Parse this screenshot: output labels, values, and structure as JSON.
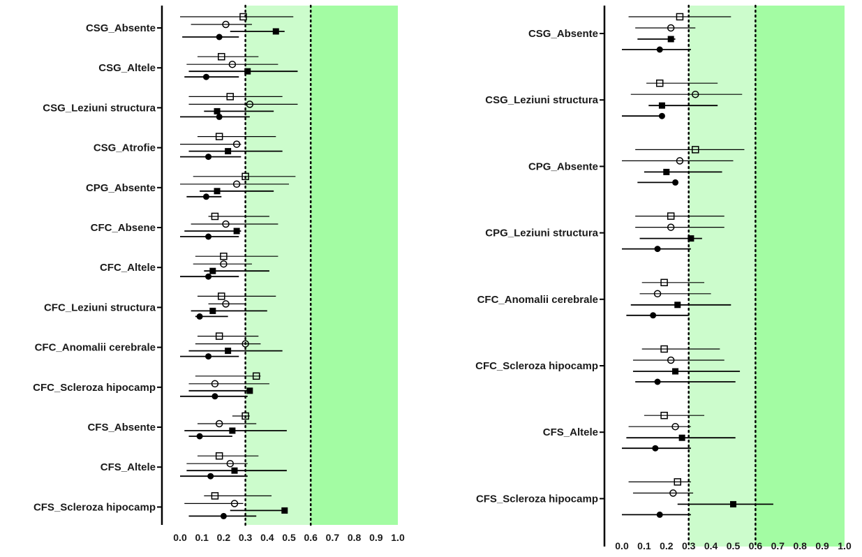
{
  "chart_data": [
    {
      "type": "forest",
      "xlim": [
        0,
        1
      ],
      "xticks": [
        0.0,
        0.1,
        0.2,
        0.3,
        0.4,
        0.5,
        0.6,
        0.7,
        0.8,
        0.9,
        1.0
      ],
      "tick_labels": [
        "0.0",
        "0.1",
        "0.2",
        "0.3",
        "0.4",
        "0.5",
        "0.6",
        "0.7",
        "0.8",
        "0.9",
        "1.0"
      ],
      "reference_lines": [
        0.3,
        0.6
      ],
      "shaded_bands": [
        {
          "from": 0.3,
          "to": 0.6,
          "color": "#ccfccc"
        },
        {
          "from": 0.6,
          "to": 1.0,
          "color": "#a3fca3"
        }
      ],
      "categories": [
        "CSG_Absente",
        "CSG_Altele",
        "CSG_Leziuni structura",
        "CSG_Atrofie",
        "CPG_Absente",
        "CFC_Absene",
        "CFC_Altele",
        "CFC_Leziuni structura",
        "CFC_Anomalii cerebrale",
        "CFC_Scleroza hipocamp",
        "CFS_Absente",
        "CFS_Altele",
        "CFS_Scleroza hipocamp"
      ],
      "series": [
        {
          "marker": "open-square",
          "points": [
            {
              "est": 0.29,
              "lo": 0.0,
              "hi": 0.52
            },
            {
              "est": 0.19,
              "lo": 0.08,
              "hi": 0.36
            },
            {
              "est": 0.23,
              "lo": 0.04,
              "hi": 0.47
            },
            {
              "est": 0.18,
              "lo": 0.08,
              "hi": 0.44
            },
            {
              "est": 0.3,
              "lo": 0.06,
              "hi": 0.53
            },
            {
              "est": 0.16,
              "lo": 0.13,
              "hi": 0.41
            },
            {
              "est": 0.2,
              "lo": 0.07,
              "hi": 0.45
            },
            {
              "est": 0.19,
              "lo": 0.08,
              "hi": 0.44
            },
            {
              "est": 0.18,
              "lo": 0.08,
              "hi": 0.36
            },
            {
              "est": 0.35,
              "lo": 0.07,
              "hi": 0.37
            },
            {
              "est": 0.3,
              "lo": 0.24,
              "hi": 0.32
            },
            {
              "est": 0.18,
              "lo": 0.08,
              "hi": 0.36
            },
            {
              "est": 0.16,
              "lo": 0.11,
              "hi": 0.42
            }
          ]
        },
        {
          "marker": "open-circle",
          "points": [
            {
              "est": 0.21,
              "lo": 0.05,
              "hi": 0.33
            },
            {
              "est": 0.24,
              "lo": 0.03,
              "hi": 0.45
            },
            {
              "est": 0.32,
              "lo": 0.04,
              "hi": 0.54
            },
            {
              "est": 0.26,
              "lo": 0.0,
              "hi": 0.28
            },
            {
              "est": 0.26,
              "lo": 0.0,
              "hi": 0.5
            },
            {
              "est": 0.21,
              "lo": 0.05,
              "hi": 0.45
            },
            {
              "est": 0.2,
              "lo": 0.06,
              "hi": 0.33
            },
            {
              "est": 0.21,
              "lo": 0.13,
              "hi": 0.3
            },
            {
              "est": 0.3,
              "lo": 0.07,
              "hi": 0.37
            },
            {
              "est": 0.16,
              "lo": 0.04,
              "hi": 0.41
            },
            {
              "est": 0.18,
              "lo": 0.08,
              "hi": 0.35
            },
            {
              "est": 0.23,
              "lo": 0.03,
              "hi": 0.31
            },
            {
              "est": 0.25,
              "lo": 0.02,
              "hi": 0.29
            }
          ]
        },
        {
          "marker": "filled-square",
          "points": [
            {
              "est": 0.44,
              "lo": 0.23,
              "hi": 0.48
            },
            {
              "est": 0.31,
              "lo": 0.04,
              "hi": 0.54
            },
            {
              "est": 0.17,
              "lo": 0.11,
              "hi": 0.43
            },
            {
              "est": 0.22,
              "lo": 0.04,
              "hi": 0.47
            },
            {
              "est": 0.17,
              "lo": 0.09,
              "hi": 0.43
            },
            {
              "est": 0.26,
              "lo": 0.02,
              "hi": 0.28
            },
            {
              "est": 0.15,
              "lo": 0.11,
              "hi": 0.41
            },
            {
              "est": 0.15,
              "lo": 0.05,
              "hi": 0.4
            },
            {
              "est": 0.22,
              "lo": 0.04,
              "hi": 0.47
            },
            {
              "est": 0.32,
              "lo": 0.04,
              "hi": 0.33
            },
            {
              "est": 0.24,
              "lo": 0.02,
              "hi": 0.49
            },
            {
              "est": 0.25,
              "lo": 0.03,
              "hi": 0.49
            },
            {
              "est": 0.48,
              "lo": 0.23,
              "hi": 0.48
            }
          ]
        },
        {
          "marker": "filled-circle",
          "points": [
            {
              "est": 0.18,
              "lo": 0.01,
              "hi": 0.27
            },
            {
              "est": 0.12,
              "lo": 0.02,
              "hi": 0.27
            },
            {
              "est": 0.18,
              "lo": 0.0,
              "hi": 0.32
            },
            {
              "est": 0.13,
              "lo": 0.0,
              "hi": 0.28
            },
            {
              "est": 0.12,
              "lo": 0.03,
              "hi": 0.19
            },
            {
              "est": 0.13,
              "lo": 0.0,
              "hi": 0.27
            },
            {
              "est": 0.13,
              "lo": 0.0,
              "hi": 0.27
            },
            {
              "est": 0.09,
              "lo": 0.07,
              "hi": 0.22
            },
            {
              "est": 0.13,
              "lo": 0.0,
              "hi": 0.27
            },
            {
              "est": 0.16,
              "lo": 0.0,
              "hi": 0.31
            },
            {
              "est": 0.09,
              "lo": 0.04,
              "hi": 0.24
            },
            {
              "est": 0.14,
              "lo": 0.0,
              "hi": 0.31
            },
            {
              "est": 0.2,
              "lo": 0.04,
              "hi": 0.35
            }
          ]
        }
      ]
    },
    {
      "type": "forest",
      "xlim": [
        0,
        1
      ],
      "xticks": [
        0.0,
        0.1,
        0.2,
        0.3,
        0.4,
        0.5,
        0.6,
        0.7,
        0.8,
        0.9,
        1.0
      ],
      "tick_labels": [
        "0.0",
        "0.1",
        "0.2",
        "0.3",
        "0.4",
        "0.5",
        "0.6",
        "0.7",
        "0.8",
        "0.9",
        "1.0"
      ],
      "reference_lines": [
        0.3,
        0.6
      ],
      "shaded_bands": [
        {
          "from": 0.3,
          "to": 0.6,
          "color": "#ccfccc"
        },
        {
          "from": 0.6,
          "to": 1.0,
          "color": "#a3fca3"
        }
      ],
      "categories": [
        "CSG_Absente",
        "CSG_Leziuni structura",
        "CPG_Absente",
        "CPG_Leziuni structura",
        "CFC_Anomalii cerebrale",
        "CFC_Scleroza hipocamp",
        "CFS_Altele",
        "CFS_Scleroza hipocamp"
      ],
      "series": [
        {
          "marker": "open-square",
          "points": [
            {
              "est": 0.26,
              "lo": 0.03,
              "hi": 0.49
            },
            {
              "est": 0.17,
              "lo": 0.11,
              "hi": 0.43
            },
            {
              "est": 0.33,
              "lo": 0.06,
              "hi": 0.55
            },
            {
              "est": 0.22,
              "lo": 0.06,
              "hi": 0.46
            },
            {
              "est": 0.19,
              "lo": 0.09,
              "hi": 0.37
            },
            {
              "est": 0.19,
              "lo": 0.09,
              "hi": 0.44
            },
            {
              "est": 0.19,
              "lo": 0.1,
              "hi": 0.37
            },
            {
              "est": 0.25,
              "lo": 0.03,
              "hi": 0.31
            }
          ]
        },
        {
          "marker": "open-circle",
          "points": [
            {
              "est": 0.22,
              "lo": 0.06,
              "hi": 0.33
            },
            {
              "est": 0.33,
              "lo": 0.04,
              "hi": 0.54
            },
            {
              "est": 0.26,
              "lo": 0.0,
              "hi": 0.5
            },
            {
              "est": 0.22,
              "lo": 0.06,
              "hi": 0.46
            },
            {
              "est": 0.16,
              "lo": 0.08,
              "hi": 0.4
            },
            {
              "est": 0.22,
              "lo": 0.05,
              "hi": 0.46
            },
            {
              "est": 0.24,
              "lo": 0.03,
              "hi": 0.31
            },
            {
              "est": 0.23,
              "lo": 0.05,
              "hi": 0.32
            }
          ]
        },
        {
          "marker": "filled-square",
          "points": [
            {
              "est": 0.22,
              "lo": 0.07,
              "hi": 0.24
            },
            {
              "est": 0.18,
              "lo": 0.12,
              "hi": 0.43
            },
            {
              "est": 0.2,
              "lo": 0.1,
              "hi": 0.45
            },
            {
              "est": 0.31,
              "lo": 0.08,
              "hi": 0.36
            },
            {
              "est": 0.25,
              "lo": 0.04,
              "hi": 0.49
            },
            {
              "est": 0.24,
              "lo": 0.05,
              "hi": 0.53
            },
            {
              "est": 0.27,
              "lo": 0.02,
              "hi": 0.51
            },
            {
              "est": 0.5,
              "lo": 0.25,
              "hi": 0.68
            }
          ]
        },
        {
          "marker": "filled-circle",
          "points": [
            {
              "est": 0.17,
              "lo": 0.0,
              "hi": 0.31
            },
            {
              "est": 0.18,
              "lo": 0.0,
              "hi": 0.19
            },
            {
              "est": 0.24,
              "lo": 0.07,
              "hi": 0.25
            },
            {
              "est": 0.16,
              "lo": 0.0,
              "hi": 0.31
            },
            {
              "est": 0.14,
              "lo": 0.02,
              "hi": 0.3
            },
            {
              "est": 0.16,
              "lo": 0.06,
              "hi": 0.51
            },
            {
              "est": 0.15,
              "lo": 0.0,
              "hi": 0.31
            },
            {
              "est": 0.17,
              "lo": 0.0,
              "hi": 0.31
            }
          ]
        }
      ]
    }
  ]
}
